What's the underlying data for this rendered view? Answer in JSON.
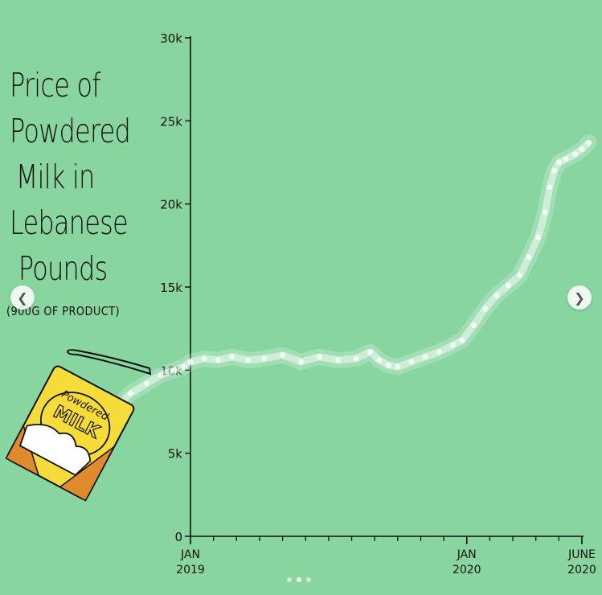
{
  "carousel": {
    "prev_icon": "chevron-left-icon",
    "next_icon": "chevron-right-icon",
    "dot_count": 3,
    "active_dot": 1
  },
  "colors": {
    "background": "#88d5a0",
    "line": "#ffffff",
    "axis": "#111111",
    "package_yellow": "#f6dc3a",
    "package_orange": "#e08a2e"
  },
  "illustration": {
    "name": "powdered-milk-package",
    "label_line1": "Powdered",
    "label_line2": "MILK"
  },
  "chart_data": {
    "type": "line",
    "title_lines": [
      "Price of",
      "Powdered",
      "Milk in",
      "Lebanese",
      "Pounds"
    ],
    "subtitle": "(900G OF PRODUCT)",
    "xlabel": "",
    "ylabel": "",
    "ylim": [
      0,
      30000
    ],
    "y_ticks": [
      {
        "value": 0,
        "label": "0"
      },
      {
        "value": 5000,
        "label": "5k"
      },
      {
        "value": 10000,
        "label": "10k"
      },
      {
        "value": 15000,
        "label": "15k"
      },
      {
        "value": 20000,
        "label": "20k"
      },
      {
        "value": 25000,
        "label": "25k"
      },
      {
        "value": 30000,
        "label": "30k"
      }
    ],
    "x_range_months": [
      0,
      17
    ],
    "x_major_ticks": [
      {
        "month": 0,
        "line1": "JAN",
        "line2": "2019"
      },
      {
        "month": 12,
        "line1": "JAN",
        "line2": "2020"
      },
      {
        "month": 17,
        "line1": "JUNE",
        "line2": "2020"
      }
    ],
    "x_minor_tick_months": [
      1,
      2,
      3,
      4,
      5,
      6,
      7,
      8,
      9,
      10,
      11,
      13,
      14,
      15,
      16
    ],
    "grid": false,
    "legend": "none",
    "series": [
      {
        "x": [
          -3.2,
          -2.6,
          -1.9,
          -1.3,
          -0.7,
          -0.3,
          0,
          0.6,
          1.2,
          1.8,
          2.5,
          3.2,
          4.0,
          4.8,
          5.6,
          6.4,
          7.2,
          7.8,
          8.2,
          8.6,
          9.0,
          9.6,
          10.2,
          10.8,
          11.4,
          11.8,
          12.3,
          12.8,
          13.3,
          13.8,
          14.3,
          14.7,
          15.1,
          15.4,
          15.6,
          15.8,
          16.0,
          16.3,
          16.7,
          17.0,
          17.3
        ],
        "y": [
          7800,
          8600,
          9200,
          9700,
          10000,
          10200,
          10500,
          10700,
          10600,
          10800,
          10600,
          10700,
          10900,
          10500,
          10800,
          10600,
          10700,
          11100,
          10600,
          10300,
          10200,
          10500,
          10800,
          11100,
          11500,
          11800,
          12700,
          13700,
          14500,
          15100,
          15700,
          16800,
          18000,
          19500,
          21000,
          22000,
          22500,
          22700,
          23000,
          23300,
          23700
        ]
      }
    ]
  }
}
